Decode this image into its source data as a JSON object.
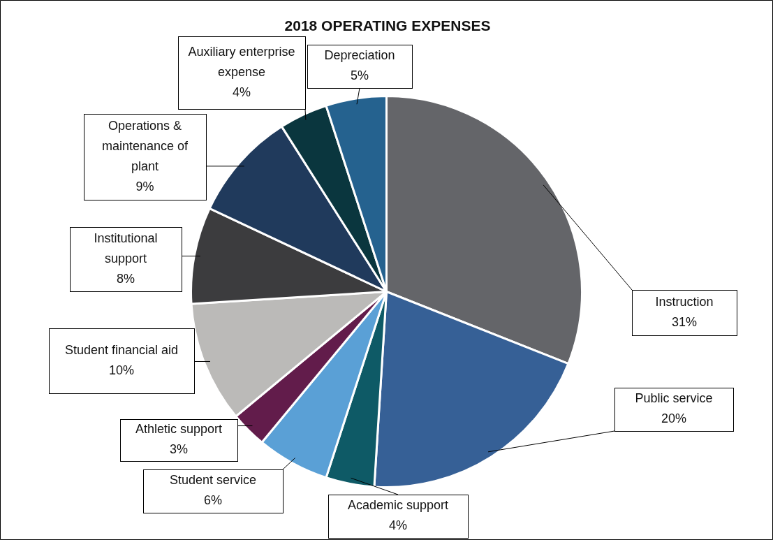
{
  "chart_data": {
    "type": "pie",
    "title": "2018 OPERATING EXPENSES",
    "categories": [
      "Instruction",
      "Public service",
      "Academic support",
      "Student service",
      "Athletic support",
      "Student financial aid",
      "Institutional support",
      "Operations & maintenance of plant",
      "Auxiliary enterprise expense",
      "Depreciation"
    ],
    "values": [
      31,
      20,
      4,
      6,
      3,
      10,
      8,
      9,
      4,
      5
    ],
    "value_labels": [
      "31%",
      "20%",
      "4%",
      "6%",
      "3%",
      "10%",
      "8%",
      "9%",
      "4%",
      "5%"
    ],
    "colors": [
      "#646569",
      "#366096",
      "#0e5a66",
      "#5aa0d6",
      "#621c4b",
      "#bbbab8",
      "#3c3c3e",
      "#203a5c",
      "#0a363e",
      "#25628f"
    ],
    "legend": false
  }
}
